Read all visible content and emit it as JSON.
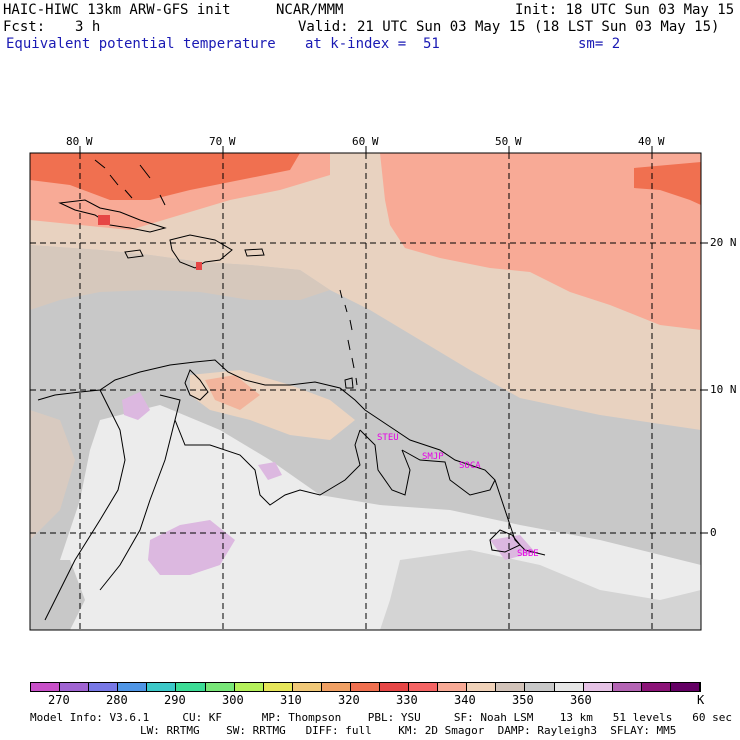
{
  "header": {
    "title": "HAIC-HIWC 13km ARW-GFS init",
    "org": "NCAR/MMM",
    "init": "Init: 18 UTC Sun 03 May 15",
    "fcst_label": "Fcst:",
    "fcst_value": "3 h",
    "valid": "Valid: 21 UTC Sun 03 May 15 (18 LST Sun 03 May 15)",
    "field": "Equivalent potential temperature",
    "level": "at k-index =  51",
    "smoothing": "sm= 2"
  },
  "map": {
    "lon_labels": [
      "80 W",
      "70 W",
      "60 W",
      "50 W",
      "40 W"
    ],
    "lat_labels": [
      "20 N",
      "10 N",
      "0"
    ],
    "stations": [
      "STEU",
      "SMJP",
      "SOCA",
      "SBBE"
    ]
  },
  "colorbar": {
    "ticks": [
      "270",
      "280",
      "290",
      "300",
      "310",
      "320",
      "330",
      "340",
      "350",
      "360"
    ],
    "unit": "K",
    "colors": [
      "#c850c8",
      "#a064d2",
      "#7878e6",
      "#5096e6",
      "#3cc8c8",
      "#3cdc96",
      "#78e678",
      "#b4f05a",
      "#e6e65a",
      "#f0c878",
      "#f0a064",
      "#f07050",
      "#e64646",
      "#f56464",
      "#f8aa96",
      "#f0d2b9",
      "#d2c3b9",
      "#c8c8c8",
      "#e6e6e6",
      "#e6c3e6",
      "#b464b4",
      "#8c1478",
      "#640064"
    ]
  },
  "model_info": {
    "line1": "Model Info: V3.6.1     CU: KF      MP: Thompson    PBL: YSU     SF: Noah LSM    13 km   51 levels   60 sec",
    "line2": "LW: RRTMG    SW: RRTMG   DIFF: full    KM: 2D Smagor  DAMP: Rayleigh3  SFLAY: MM5"
  }
}
